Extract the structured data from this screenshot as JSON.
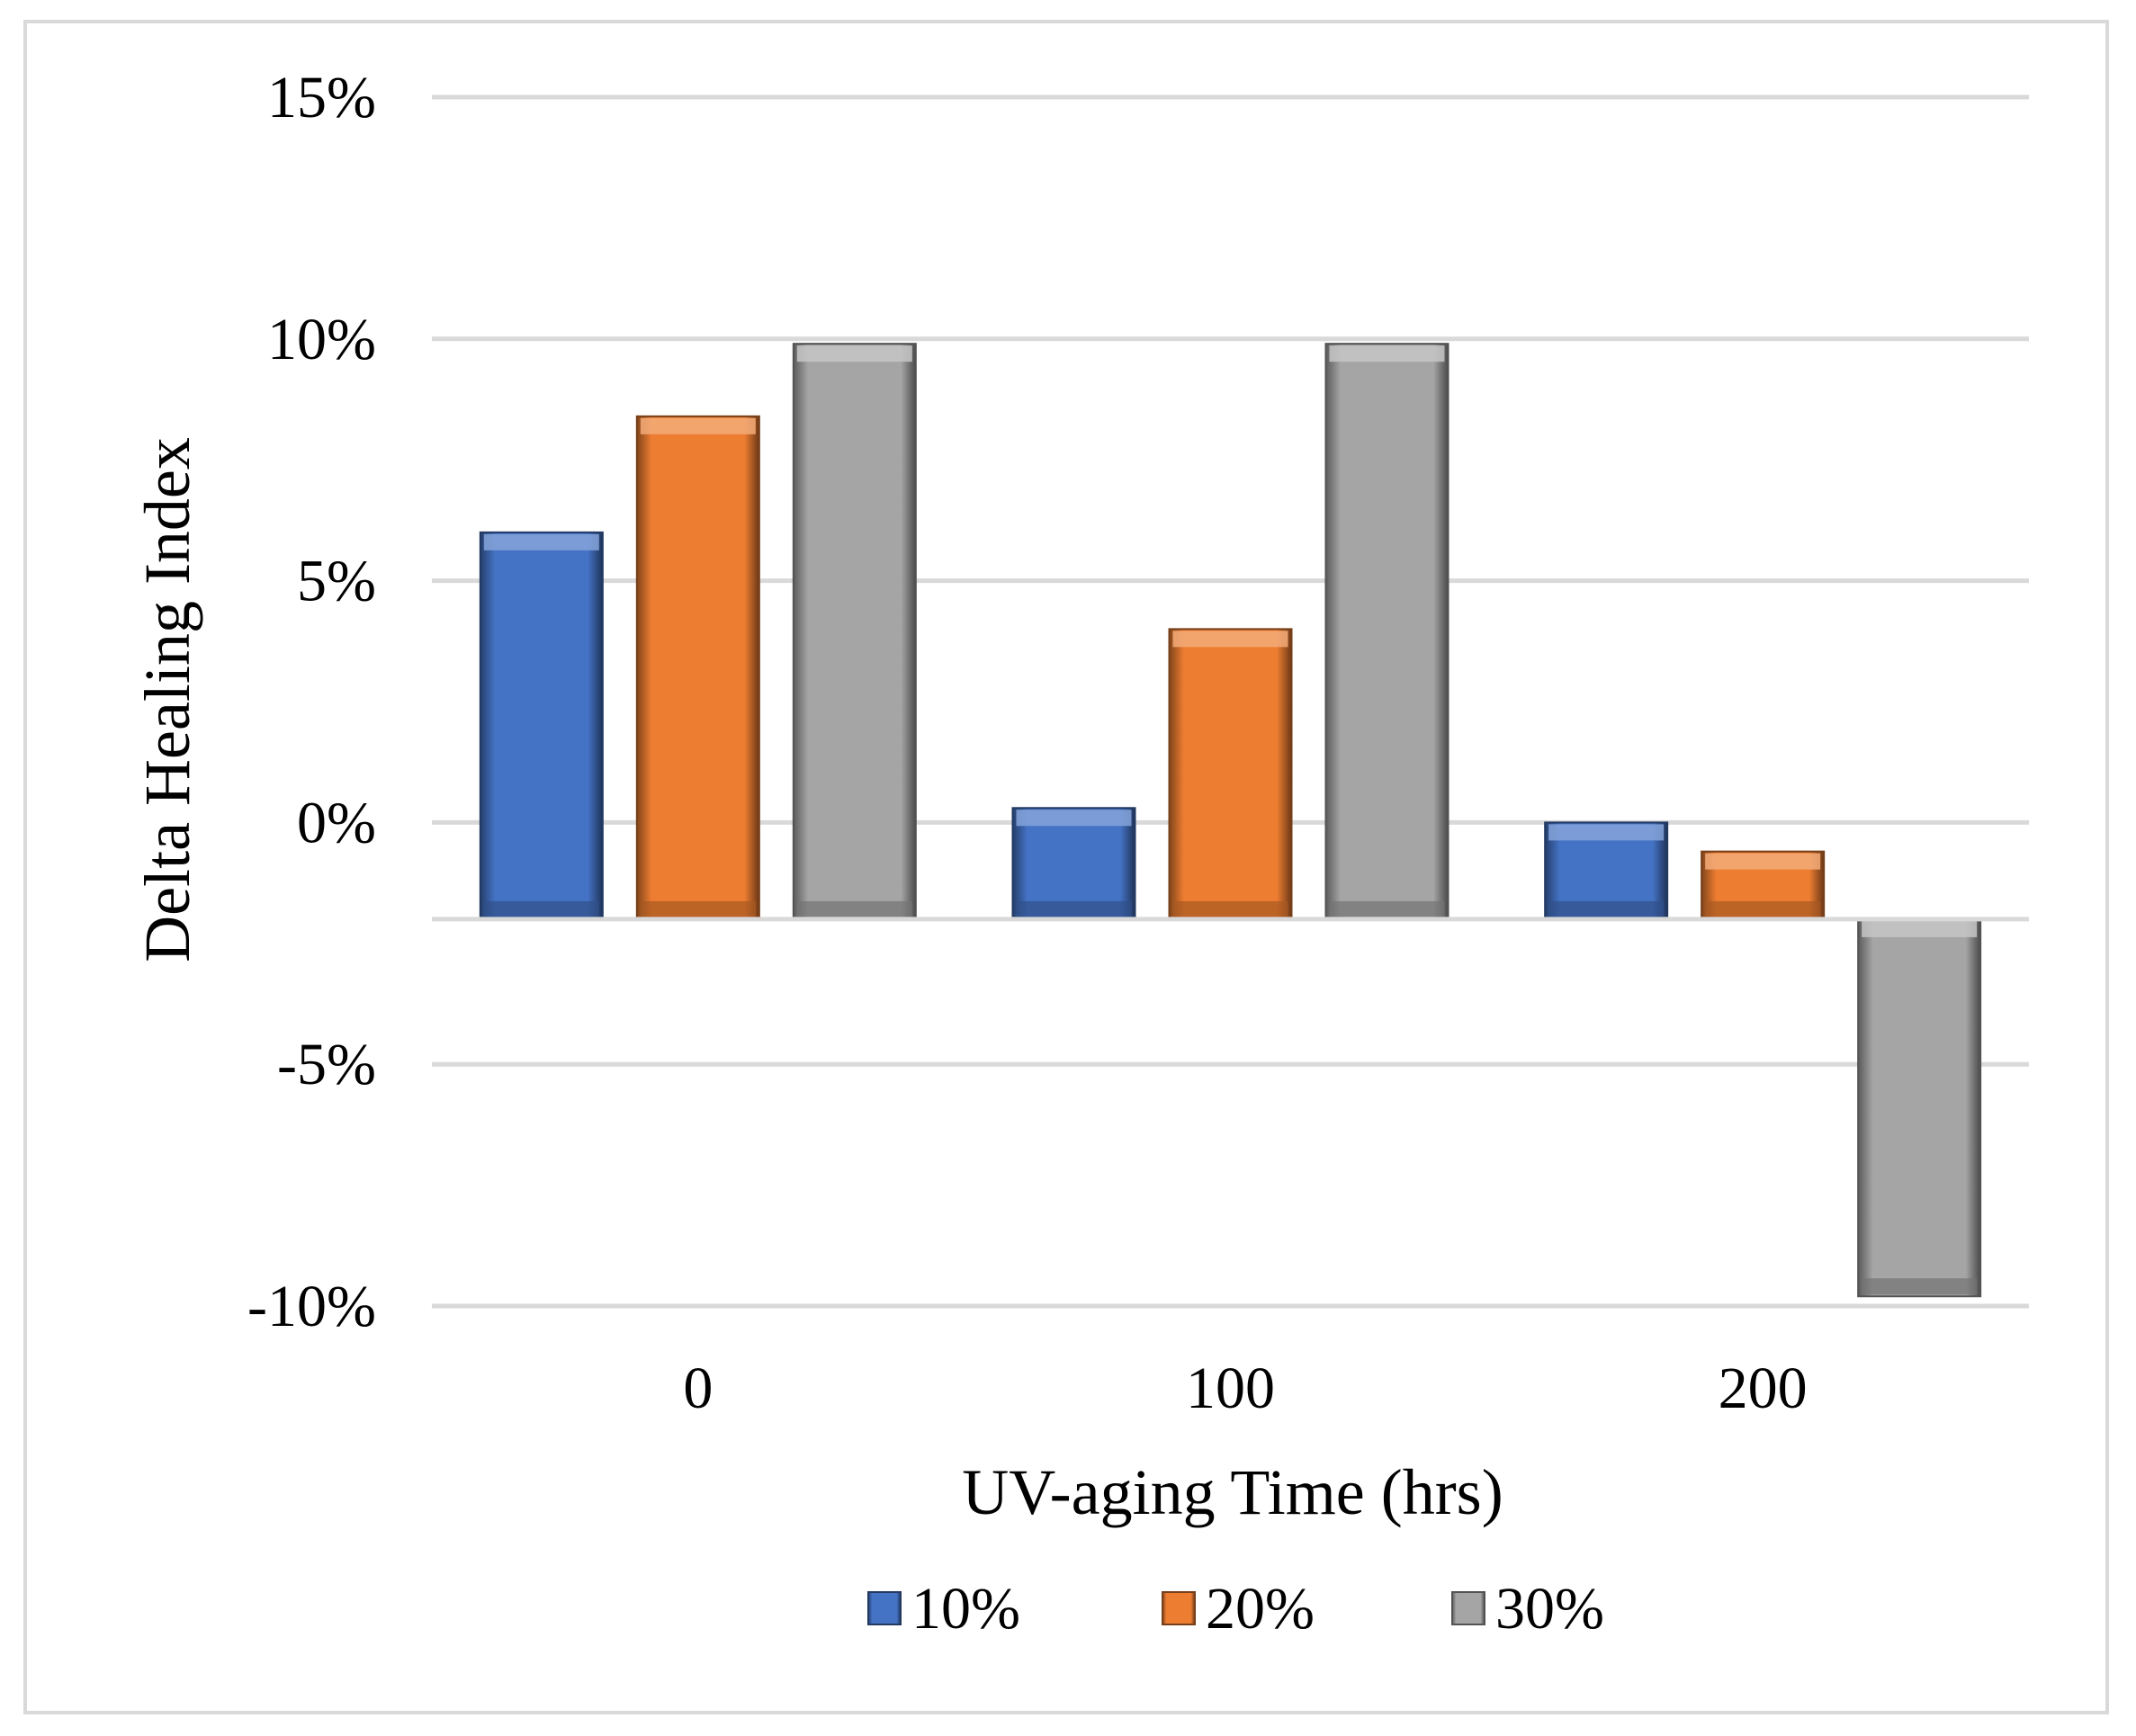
{
  "chart_data": {
    "type": "bar",
    "title": "",
    "xlabel": "UV-aging Time (hrs)",
    "ylabel": "Delta Healing Index",
    "categories": [
      "0",
      "100",
      "200"
    ],
    "series": [
      {
        "name": "10%",
        "values": [
          0.06,
          0.003,
          0.0
        ],
        "color": "#4472C4"
      },
      {
        "name": "20%",
        "values": [
          0.084,
          0.04,
          -0.006
        ],
        "color": "#ED7D31"
      },
      {
        "name": "30%",
        "values": [
          0.099,
          0.099,
          -0.098
        ],
        "color": "#A5A5A5"
      }
    ],
    "ylim": [
      -0.1,
      0.15
    ],
    "yticks": [
      0.15,
      0.1,
      0.05,
      0.0,
      -0.05,
      -0.1
    ],
    "ytick_labels": [
      "15%",
      "10%",
      "5%",
      "0%",
      "-5%",
      "-10%"
    ],
    "baseline": -0.02,
    "grid": true,
    "legend_position": "bottom"
  }
}
